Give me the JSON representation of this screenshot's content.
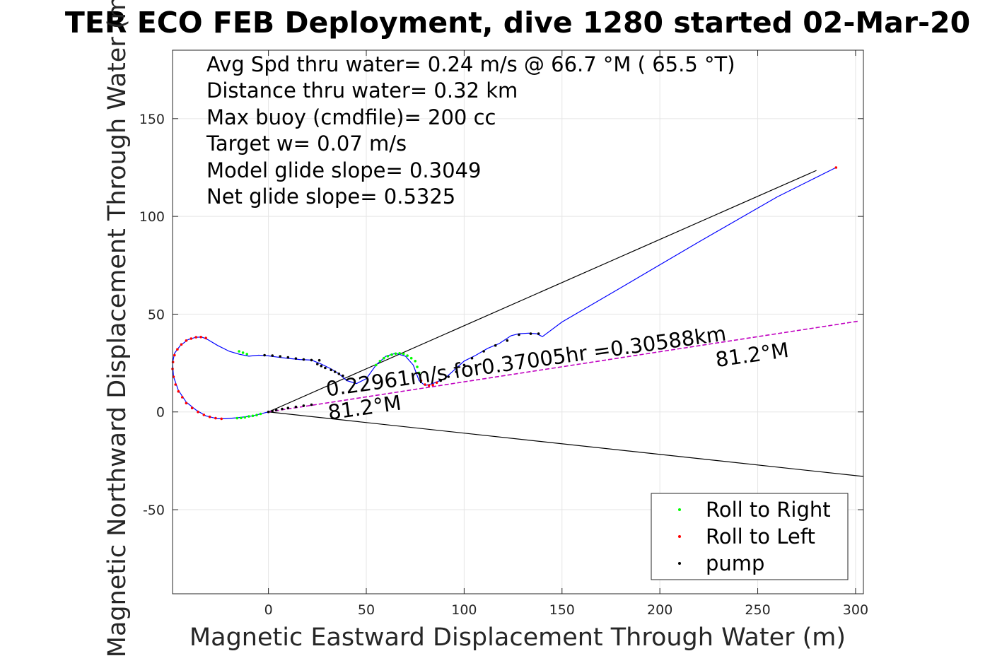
{
  "chart_data": {
    "type": "scatter",
    "title": "TER ECO FEB Deployment, dive 1280 started 02-Mar-20",
    "xlabel": "Magnetic Eastward Displacement Through Water (m)",
    "ylabel": "Magnetic Northward Displacement Through Water (m)",
    "xlim": [
      -49,
      304
    ],
    "ylim": [
      -93,
      185
    ],
    "xticks": [
      0,
      50,
      100,
      150,
      200,
      250,
      300
    ],
    "yticks": [
      -50,
      0,
      50,
      100,
      150
    ],
    "xticklabels": [
      "0",
      "50",
      "100",
      "150",
      "200",
      "250",
      "300"
    ],
    "yticklabels": [
      "-50",
      "0",
      "50",
      "100",
      "150"
    ],
    "grid": true,
    "info_lines": [
      "Avg Spd thru water=  0.24 m/s @  66.7 °M ( 65.5 °T)",
      "Distance thru water=  0.32 km",
      "Max buoy (cmdfile)= 200 cc",
      "Target w= 0.07 m/s",
      "Model glide slope= 0.3049",
      "Net glide slope= 0.5325"
    ],
    "annotations": [
      {
        "text": "0.22961m/s for0.37005hr =0.30588km",
        "x": 30,
        "y": 8,
        "rotation_deg": -8
      },
      {
        "text": "81.2°M",
        "x": 31,
        "y": -4,
        "rotation_deg": -8
      },
      {
        "text": "81.2°M",
        "x": 229,
        "y": 23,
        "rotation_deg": -8
      }
    ],
    "lines": [
      {
        "name": "upper-bound",
        "color": "#000000",
        "x": [
          0,
          280
        ],
        "y": [
          0,
          123.5
        ]
      },
      {
        "name": "lower-bound",
        "color": "#000000",
        "x": [
          0,
          304
        ],
        "y": [
          0,
          -33
        ]
      },
      {
        "name": "heading-line",
        "color": "#c000c0",
        "dashed": true,
        "x": [
          0,
          302
        ],
        "y": [
          0,
          46.5
        ]
      }
    ],
    "track": {
      "color": "#0000ff",
      "x": [
        0,
        -8,
        -16,
        -22,
        -26,
        -32,
        -37,
        -42,
        -46,
        -48.5,
        -49,
        -48,
        -45,
        -41,
        -37,
        -34,
        -31,
        -26,
        -20,
        -15,
        -10,
        -5,
        0,
        5,
        10,
        16,
        22,
        27,
        32,
        36,
        40,
        45,
        50,
        55,
        60,
        65,
        70,
        74,
        77,
        80,
        84,
        90,
        95,
        100,
        106,
        112,
        118,
        124,
        128,
        133,
        137,
        140,
        150,
        180,
        220,
        260,
        290
      ],
      "y": [
        0,
        -2,
        -3,
        -3.5,
        -3.5,
        -2,
        1,
        5,
        11,
        18,
        25,
        30,
        34,
        37,
        38.2,
        38.3,
        37,
        34,
        31,
        29.5,
        28.5,
        29,
        28.7,
        28,
        27.4,
        26.8,
        26.5,
        24.5,
        22,
        19.5,
        16,
        14.5,
        17,
        24,
        28.5,
        30,
        28.5,
        24,
        16,
        13.5,
        14.5,
        17,
        21.5,
        26,
        29,
        32.5,
        35,
        39,
        40,
        40.3,
        40,
        38.5,
        46,
        63.5,
        87,
        110,
        125
      ]
    },
    "series": [
      {
        "name": "Roll to Right",
        "color": "#00ff00",
        "x": [
          -16,
          -14,
          -12,
          -10,
          -8,
          -6,
          -4,
          -15,
          -13,
          -11,
          55,
          57,
          59,
          61,
          63,
          65,
          67,
          69,
          71,
          73,
          75,
          76,
          77
        ],
        "y": [
          -3.2,
          -3.1,
          -2.8,
          -2.3,
          -2,
          -1.6,
          -1,
          31,
          30.3,
          29.6,
          24,
          26,
          27.5,
          28.5,
          29.3,
          29.8,
          30,
          29.7,
          28.8,
          27.5,
          26,
          23,
          20
        ]
      },
      {
        "name": "Roll to Left",
        "color": "#ff0000",
        "x": [
          -24,
          -27,
          -30,
          -33,
          -36,
          -39,
          -42,
          -44,
          -46,
          -47.5,
          -48.5,
          -49,
          -48.8,
          -48,
          -46.5,
          -44.5,
          -42,
          -39.5,
          -37,
          -34.5,
          -32,
          78,
          80,
          82,
          84,
          86,
          290
        ],
        "y": [
          -3.5,
          -3.2,
          -2.5,
          -1.5,
          0,
          2,
          4.5,
          7.5,
          10.5,
          14,
          18,
          22,
          25.5,
          29,
          32,
          34.5,
          36.5,
          37.5,
          38.2,
          38.3,
          37.8,
          16,
          14,
          13.5,
          13.8,
          15,
          125
        ]
      },
      {
        "name": "pump",
        "color": "#000000",
        "x": [
          0,
          2,
          4,
          7,
          10,
          14,
          18,
          22,
          25,
          27,
          29,
          32,
          34,
          36,
          38,
          88,
          92,
          96,
          100,
          104,
          110,
          116,
          122,
          128,
          134,
          138,
          -2,
          2,
          6,
          10,
          14,
          18,
          22,
          26
        ],
        "y": [
          0,
          0.5,
          1,
          1.5,
          2,
          2.6,
          3.2,
          3.7,
          24.5,
          23.5,
          22.5,
          21.5,
          20.5,
          19.5,
          18.5,
          16,
          18,
          20.5,
          24,
          27.5,
          31,
          34,
          36.5,
          39.5,
          40,
          40,
          29,
          28.8,
          28.4,
          27.9,
          27.3,
          26.8,
          26.5,
          26.4
        ]
      }
    ],
    "legend": {
      "placement": "bottom-right",
      "entries": [
        "Roll to Right",
        "Roll to Left",
        "pump"
      ]
    }
  }
}
